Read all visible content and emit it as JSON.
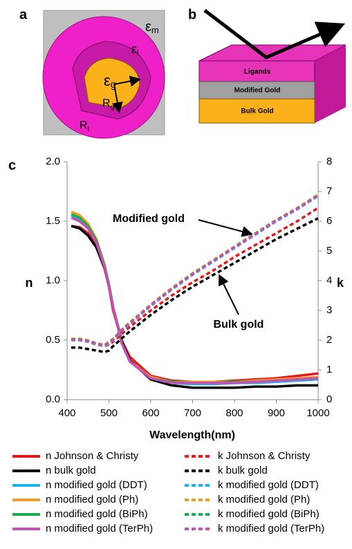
{
  "panel_labels": [
    "a",
    "b",
    "c"
  ],
  "diagram_a": {
    "labels": [
      {
        "base": "ε",
        "sub": "m"
      },
      {
        "base": "ε",
        "sub": "l"
      },
      {
        "base": "ε",
        "sub": "g"
      },
      {
        "base": "R",
        "sub": "g"
      },
      {
        "base": "R",
        "sub": "l"
      }
    ]
  },
  "diagram_b": {
    "layers": [
      "Ligands",
      "Modified Gold",
      "Bulk Gold"
    ]
  },
  "chart_data": {
    "type": "line",
    "xlabel": "Wavelength(nm)",
    "ylabel": "n",
    "y2label": "k",
    "x": [
      410,
      430,
      450,
      470,
      490,
      500,
      510,
      530,
      550,
      600,
      650,
      700,
      750,
      800,
      850,
      900,
      950,
      1000
    ],
    "xlim": [
      400,
      1000
    ],
    "xticks": [
      400,
      500,
      600,
      700,
      800,
      900,
      1000
    ],
    "ylim": [
      0,
      2
    ],
    "yticks": [
      {
        "value": 0,
        "label": "0.0"
      },
      0.5,
      {
        "value": 1,
        "label": "1.0"
      },
      1.5,
      {
        "value": 2,
        "label": "2.0"
      }
    ],
    "y2lim": [
      0,
      8
    ],
    "y2ticks": [
      0,
      1,
      2,
      3,
      4,
      5,
      6,
      7,
      8
    ],
    "annotations": [
      {
        "text": "Modified gold"
      },
      {
        "text": "Bulk gold"
      }
    ],
    "series": [
      {
        "name": "n Johnson & Christy",
        "color": "#e51a1a",
        "style": "solid",
        "values": [
          1.46,
          1.45,
          1.4,
          1.3,
          1.1,
          0.95,
          0.75,
          0.5,
          0.36,
          0.2,
          0.16,
          0.15,
          0.15,
          0.16,
          0.17,
          0.18,
          0.2,
          0.22
        ]
      },
      {
        "name": "n bulk gold",
        "color": "#000000",
        "style": "solid",
        "values": [
          1.46,
          1.44,
          1.38,
          1.28,
          1.1,
          0.96,
          0.78,
          0.5,
          0.33,
          0.17,
          0.12,
          0.1,
          0.1,
          0.1,
          0.11,
          0.11,
          0.12,
          0.12
        ]
      },
      {
        "name": "n modified gold (DDT)",
        "color": "#1ab4ec",
        "style": "solid",
        "values": [
          1.55,
          1.52,
          1.45,
          1.33,
          1.12,
          0.97,
          0.78,
          0.48,
          0.32,
          0.18,
          0.14,
          0.13,
          0.13,
          0.14,
          0.14,
          0.15,
          0.16,
          0.17
        ]
      },
      {
        "name": "n modified gold (Ph)",
        "color": "#f79a1e",
        "style": "solid",
        "values": [
          1.58,
          1.55,
          1.48,
          1.35,
          1.13,
          0.97,
          0.78,
          0.48,
          0.32,
          0.19,
          0.15,
          0.15,
          0.15,
          0.15,
          0.16,
          0.17,
          0.18,
          0.19
        ]
      },
      {
        "name": "n modified gold (BiPh)",
        "color": "#1aad50",
        "style": "solid",
        "values": [
          1.56,
          1.53,
          1.46,
          1.34,
          1.12,
          0.97,
          0.78,
          0.48,
          0.32,
          0.18,
          0.15,
          0.14,
          0.14,
          0.15,
          0.15,
          0.16,
          0.17,
          0.18
        ]
      },
      {
        "name": "n modified gold (TerPh)",
        "color": "#c850b4",
        "style": "solid",
        "values": [
          1.53,
          1.5,
          1.44,
          1.32,
          1.11,
          0.96,
          0.78,
          0.48,
          0.32,
          0.18,
          0.14,
          0.14,
          0.14,
          0.14,
          0.15,
          0.16,
          0.17,
          0.18
        ]
      },
      {
        "name": "k Johnson & Christy",
        "color": "#e51a1a",
        "style": "dashed",
        "axis": "y2",
        "values": [
          2.0,
          2.0,
          1.95,
          1.85,
          1.8,
          1.85,
          1.95,
          2.2,
          2.45,
          3.0,
          3.5,
          3.95,
          4.35,
          4.8,
          5.2,
          5.6,
          6.0,
          6.45
        ]
      },
      {
        "name": "k bulk gold",
        "color": "#000000",
        "style": "dashed",
        "axis": "y2",
        "values": [
          1.75,
          1.75,
          1.7,
          1.65,
          1.6,
          1.65,
          1.8,
          2.05,
          2.3,
          2.85,
          3.35,
          3.8,
          4.2,
          4.6,
          5.0,
          5.4,
          5.75,
          6.1
        ]
      },
      {
        "name": "k modified gold (DDT)",
        "color": "#1ab4ec",
        "style": "dashed",
        "axis": "y2",
        "values": [
          2.0,
          2.0,
          1.95,
          1.85,
          1.8,
          1.9,
          2.0,
          2.3,
          2.55,
          3.15,
          3.7,
          4.2,
          4.65,
          5.1,
          5.55,
          6.0,
          6.4,
          6.85
        ]
      },
      {
        "name": "k modified gold (Ph)",
        "color": "#f79a1e",
        "style": "dashed",
        "axis": "y2",
        "values": [
          2.05,
          2.05,
          2.0,
          1.9,
          1.85,
          1.95,
          2.05,
          2.35,
          2.6,
          3.2,
          3.75,
          4.25,
          4.7,
          5.15,
          5.6,
          6.05,
          6.45,
          6.9
        ]
      },
      {
        "name": "k modified gold (BiPh)",
        "color": "#1aad50",
        "style": "dashed",
        "axis": "y2",
        "values": [
          2.03,
          2.03,
          1.98,
          1.88,
          1.83,
          1.93,
          2.03,
          2.33,
          2.58,
          3.18,
          3.73,
          4.23,
          4.68,
          5.13,
          5.58,
          6.03,
          6.43,
          6.88
        ]
      },
      {
        "name": "k modified gold (TerPh)",
        "color": "#c850b4",
        "style": "dashed",
        "axis": "y2",
        "values": [
          2.02,
          2.02,
          1.97,
          1.87,
          1.82,
          1.92,
          2.02,
          2.32,
          2.57,
          3.17,
          3.72,
          4.22,
          4.67,
          5.12,
          5.57,
          6.02,
          6.42,
          6.87
        ]
      }
    ]
  }
}
